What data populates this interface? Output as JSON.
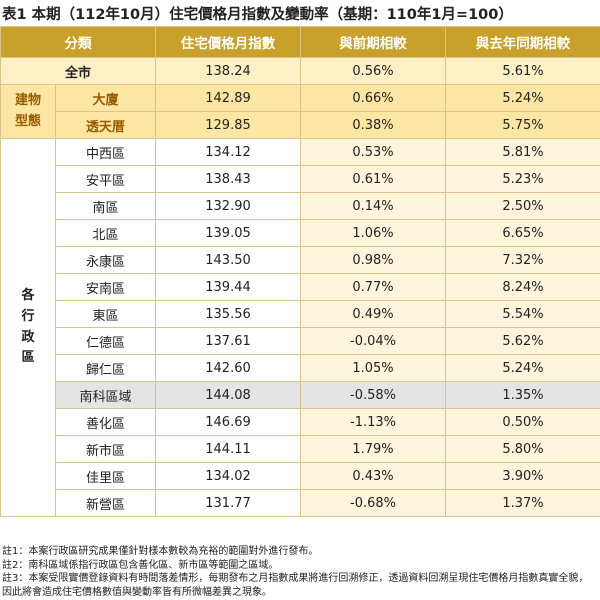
{
  "title": "表1 本期（112年10月）住宅價格月指數及變動率（基期：110年1月=100）",
  "table": {
    "header": [
      "分類",
      "住宅價格月指數",
      "與前期相較",
      "與去年同期相較"
    ],
    "total": {
      "name": "全市",
      "values": [
        "138.24",
        "0.56%",
        "5.61%"
      ]
    },
    "groups": [
      {
        "label": "建物型態",
        "rows": [
          {
            "name": "大廈",
            "values": [
              "142.89",
              "0.66%",
              "5.24%"
            ]
          },
          {
            "name": "透天厝",
            "values": [
              "129.85",
              "0.38%",
              "5.75%"
            ]
          }
        ]
      },
      {
        "label": "各行政區",
        "rows": [
          {
            "name": "中西區",
            "values": [
              "134.12",
              "0.53%",
              "5.81%"
            ]
          },
          {
            "name": "安平區",
            "values": [
              "138.43",
              "0.61%",
              "5.23%"
            ]
          },
          {
            "name": "南區",
            "values": [
              "132.90",
              "0.14%",
              "2.50%"
            ]
          },
          {
            "name": "北區",
            "values": [
              "139.05",
              "1.06%",
              "6.65%"
            ]
          },
          {
            "name": "永康區",
            "values": [
              "143.50",
              "0.98%",
              "7.32%"
            ]
          },
          {
            "name": "安南區",
            "values": [
              "139.44",
              "0.77%",
              "8.24%"
            ]
          },
          {
            "name": "東區",
            "values": [
              "135.56",
              "0.49%",
              "5.54%"
            ]
          },
          {
            "name": "仁德區",
            "values": [
              "137.61",
              "-0.04%",
              "5.62%"
            ]
          },
          {
            "name": "歸仁區",
            "values": [
              "142.60",
              "1.05%",
              "5.24%"
            ]
          },
          {
            "name": "南科區域",
            "values": [
              "144.08",
              "-0.58%",
              "1.35%"
            ]
          },
          {
            "name": "善化區",
            "values": [
              "146.69",
              "-1.13%",
              "0.50%"
            ]
          },
          {
            "name": "新市區",
            "values": [
              "144.11",
              "1.79%",
              "5.80%"
            ]
          },
          {
            "name": "佳里區",
            "values": [
              "134.02",
              "0.43%",
              "3.90%"
            ]
          },
          {
            "name": "新營區",
            "values": [
              "131.77",
              "-0.68%",
              "1.37%"
            ]
          }
        ]
      }
    ]
  },
  "notes": [
    "註1：本案行政區研究成果僅針對樣本數較為充裕的範圍對外進行發布。",
    "註2：南科區域係指行政區包含善化區、新市區等範圍之區域。",
    "註3：本案受限實價登錄資料有時間落差情形，每期發布之月指數成果將進行回溯修正，透過資料回溯呈現住宅價格月指數真實全貌，因此將會造成住宅價格數值與變動率皆有所微幅差異之現象。"
  ]
}
